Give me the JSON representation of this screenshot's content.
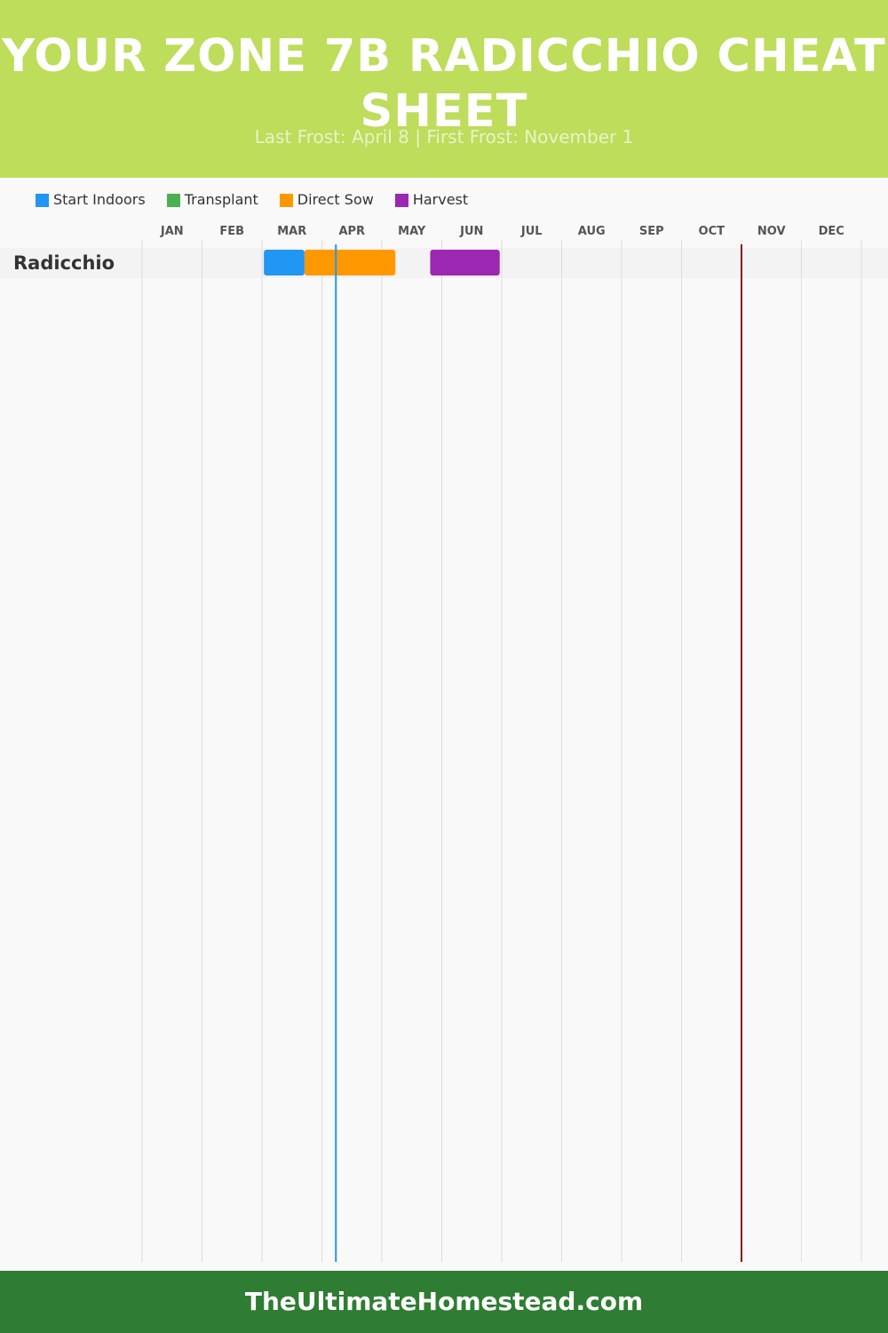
{
  "header": {
    "title": "YOUR ZONE 7B RADICCHIO CHEAT SHEET",
    "subtitle": "Last Frost: April 8 | First Frost: November 1"
  },
  "footer": {
    "text": "TheUltimateHomestead.com"
  },
  "colors": {
    "header_bg": "#bddd5b",
    "footer_bg": "#2e7d32",
    "start_indoors": "#2196f3",
    "transplant": "#4caf50",
    "direct_sow": "#ff9800",
    "harvest": "#9c27b0",
    "last_frost_line": "#2196f3",
    "first_frost_line": "#8b1a1a"
  },
  "chart_data": {
    "type": "gantt",
    "months": [
      "JAN",
      "FEB",
      "MAR",
      "APR",
      "MAY",
      "JUN",
      "JUL",
      "AUG",
      "SEP",
      "OCT",
      "NOV",
      "DEC"
    ],
    "legend": [
      {
        "label": "Start Indoors",
        "color": "#2196f3"
      },
      {
        "label": "Transplant",
        "color": "#4caf50"
      },
      {
        "label": "Direct Sow",
        "color": "#ff9800"
      },
      {
        "label": "Harvest",
        "color": "#9c27b0"
      }
    ],
    "crops": [
      {
        "name": "Radicchio",
        "bars": [
          {
            "activity": "Start Indoors",
            "start": "Mar 2",
            "end": "Mar 23",
            "color": "#2196f3"
          },
          {
            "activity": "Direct Sow",
            "start": "Mar 23",
            "end": "May 8",
            "color": "#ff9800"
          },
          {
            "activity": "Harvest",
            "start": "May 26",
            "end": "Jun 30",
            "color": "#9c27b0"
          }
        ]
      }
    ],
    "markers": [
      {
        "name": "Last Frost",
        "date": "Apr 8",
        "color": "#2196f3"
      },
      {
        "name": "First Frost",
        "date": "Nov 1",
        "color": "#8b1a1a"
      }
    ],
    "grid": true
  }
}
